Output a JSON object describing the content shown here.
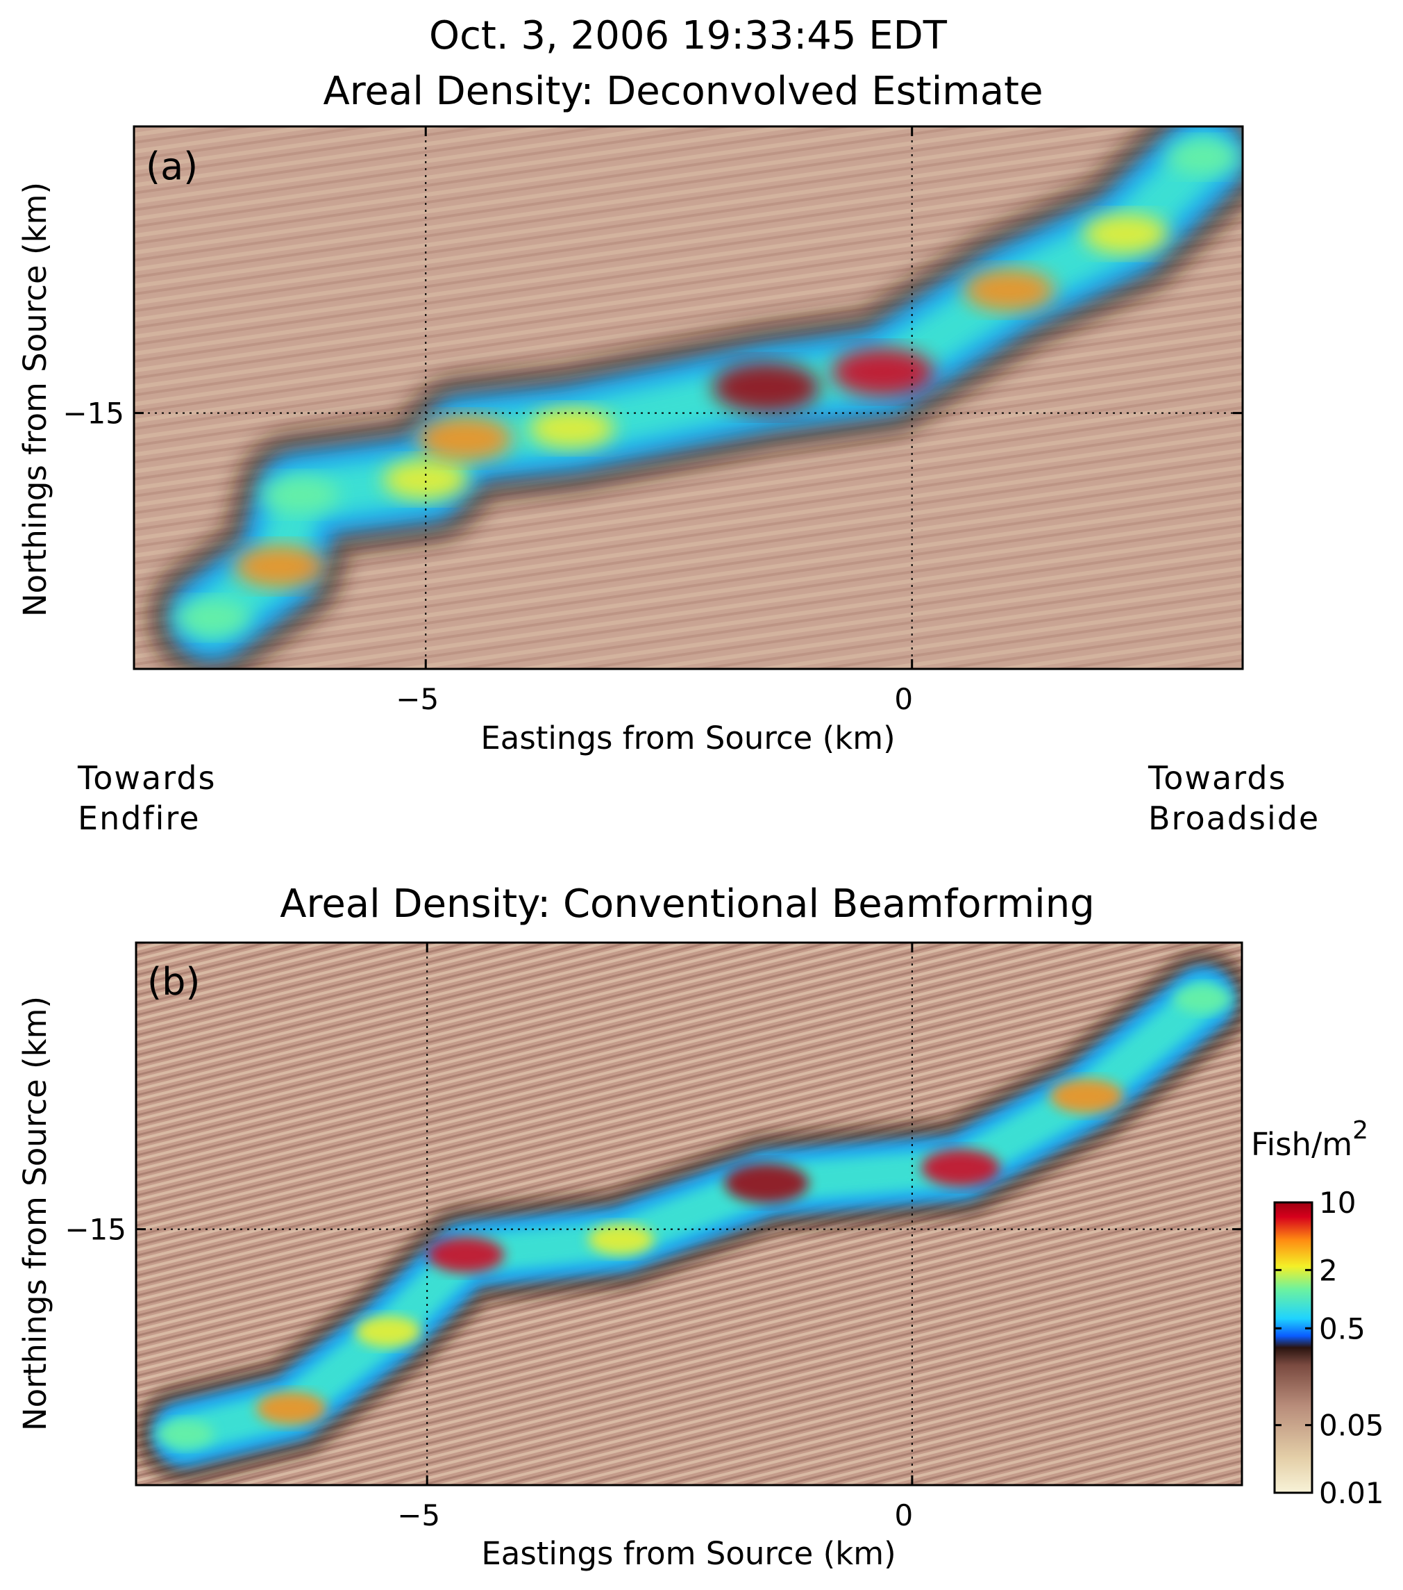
{
  "chart_data": [
    {
      "type": "heatmap",
      "panel": "(a)",
      "title_line1": "Oct. 3, 2006 19:33:45 EDT",
      "title": "Areal Density: Deconvolved Estimate",
      "xlabel": "Eastings from Source (km)",
      "ylabel": "Northings from Source (km)",
      "xlim": [
        -8,
        3.4
      ],
      "ylim": [
        -20,
        -9.4
      ],
      "xticks": [
        -5,
        0
      ],
      "yticks": [
        -15
      ],
      "grid": "dotted",
      "annotations": {
        "left": [
          "Towards",
          "Endfire"
        ],
        "right": [
          "Towards",
          "Broadside"
        ]
      },
      "shoal_band": [
        {
          "x": -7.2,
          "y": -19.0,
          "v": 0.9
        },
        {
          "x": -6.5,
          "y": -18.0,
          "v": 3.0
        },
        {
          "x": -6.3,
          "y": -16.6,
          "v": 1.2
        },
        {
          "x": -5.0,
          "y": -16.3,
          "v": 2.0
        },
        {
          "x": -4.6,
          "y": -15.5,
          "v": 4.0
        },
        {
          "x": -3.5,
          "y": -15.3,
          "v": 2.0
        },
        {
          "x": -1.5,
          "y": -14.5,
          "v": 8.0
        },
        {
          "x": -0.3,
          "y": -14.2,
          "v": 6.0
        },
        {
          "x": 1.0,
          "y": -12.6,
          "v": 3.0
        },
        {
          "x": 2.2,
          "y": -11.5,
          "v": 2.0
        },
        {
          "x": 3.0,
          "y": -10.0,
          "v": 0.8
        }
      ]
    },
    {
      "type": "heatmap",
      "panel": "(b)",
      "title": "Areal Density: Conventional Beamforming",
      "xlabel": "Eastings from Source (km)",
      "ylabel": "Northings from Source (km)",
      "xlim": [
        -8,
        3.4
      ],
      "ylim": [
        -20,
        -9.4
      ],
      "xticks": [
        -5,
        0
      ],
      "yticks": [
        -15
      ],
      "grid": "dotted",
      "shoal_band": [
        {
          "x": -7.5,
          "y": -19.0,
          "v": 0.9
        },
        {
          "x": -6.4,
          "y": -18.5,
          "v": 3.0
        },
        {
          "x": -5.4,
          "y": -17.0,
          "v": 2.0
        },
        {
          "x": -4.6,
          "y": -15.5,
          "v": 5.0
        },
        {
          "x": -3.0,
          "y": -15.2,
          "v": 2.0
        },
        {
          "x": -1.5,
          "y": -14.1,
          "v": 9.0
        },
        {
          "x": 0.5,
          "y": -13.8,
          "v": 6.0
        },
        {
          "x": 1.8,
          "y": -12.4,
          "v": 4.0
        },
        {
          "x": 3.0,
          "y": -10.5,
          "v": 1.0
        }
      ]
    }
  ],
  "colorbar": {
    "unit": "Fish/m",
    "unit_sup": "2",
    "ticks": [
      "10",
      "2",
      "0.5",
      "0.05",
      "0.01"
    ],
    "tick_values": [
      10,
      2,
      0.5,
      0.05,
      0.01
    ],
    "range": [
      0.01,
      10
    ],
    "scale": "log",
    "colors": [
      "#f8f3d8",
      "#e4cfa8",
      "#b88c7a",
      "#7a4a40",
      "#2a1410",
      "#0a5cff",
      "#1fd3ff",
      "#6cf2a0",
      "#f4f027",
      "#ff8c12",
      "#d6001c",
      "#9e0010"
    ]
  }
}
